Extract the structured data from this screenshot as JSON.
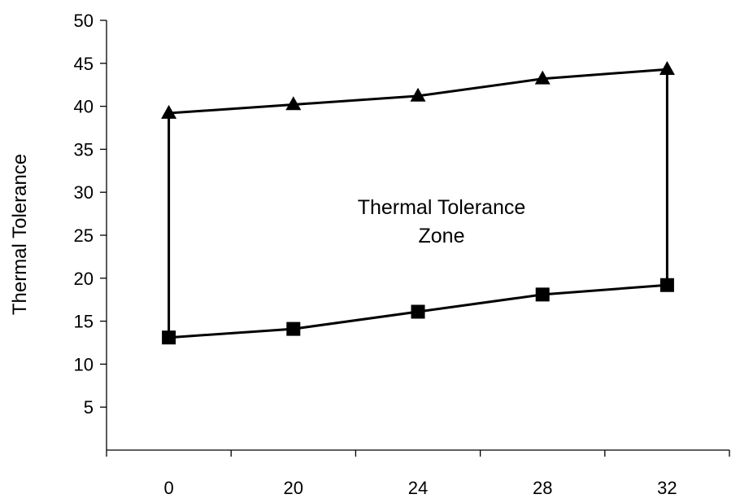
{
  "chart_data": {
    "type": "line",
    "categories": [
      "0",
      "20",
      "24",
      "28",
      "32"
    ],
    "series": [
      {
        "marker": "triangle",
        "values": [
          39.2,
          40.2,
          41.2,
          43.2,
          44.3
        ]
      },
      {
        "marker": "square",
        "values": [
          13.1,
          14.1,
          16.1,
          18.1,
          19.2
        ]
      }
    ],
    "ylabel": "Thermal Tolerance",
    "ylim": [
      0,
      50
    ],
    "yticks": [
      5,
      10,
      15,
      20,
      25,
      30,
      35,
      40,
      45,
      50
    ],
    "annotation": [
      "Thermal Tolerance",
      "Zone"
    ],
    "grid": false,
    "colors": {
      "line": "#000000",
      "axis": "#000000"
    }
  }
}
